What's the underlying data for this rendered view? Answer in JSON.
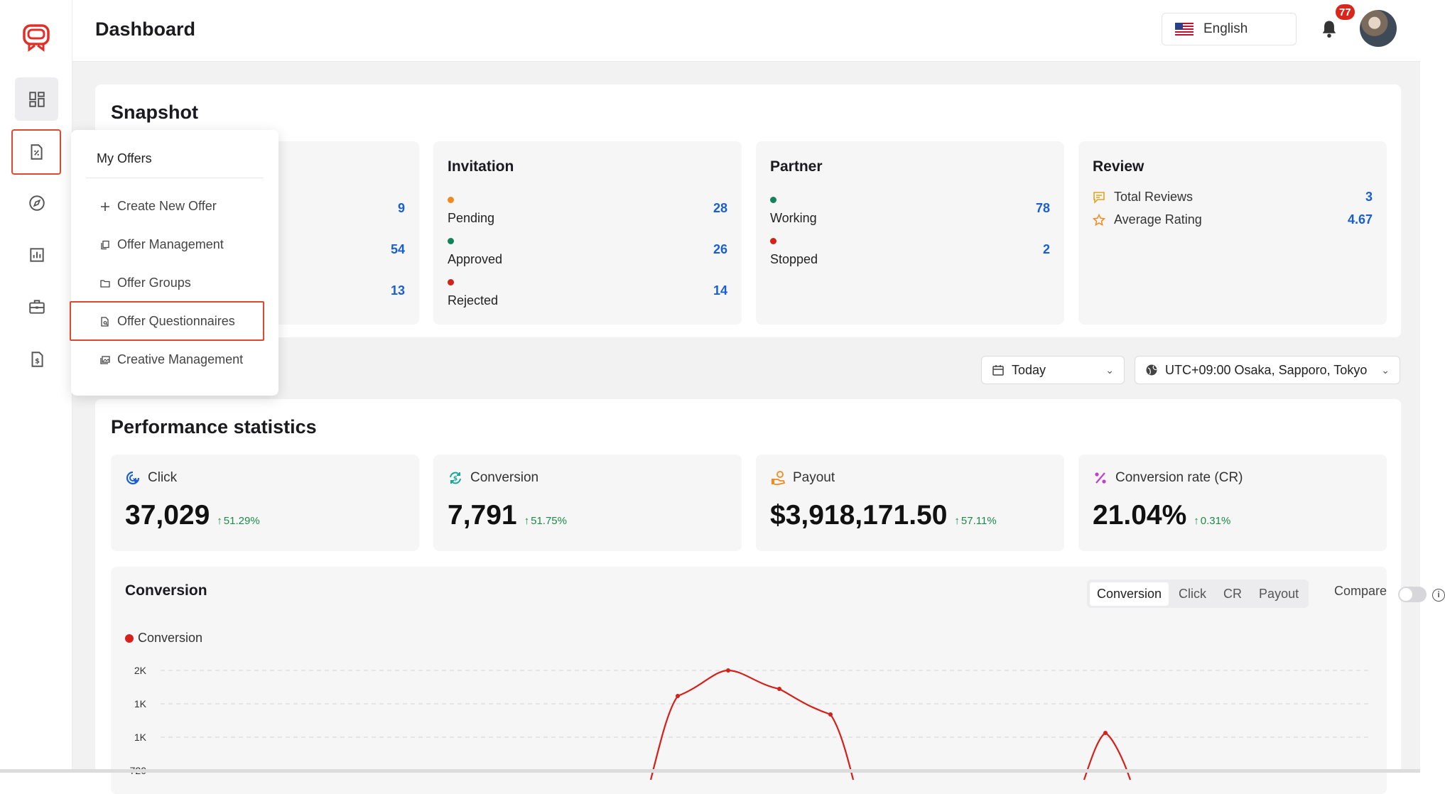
{
  "header": {
    "title": "Dashboard",
    "language": "English",
    "notification_count": "77"
  },
  "sidebar": {
    "items": [
      {
        "name": "dashboard",
        "icon": "grid-icon"
      },
      {
        "name": "offers",
        "icon": "offer-document-icon"
      },
      {
        "name": "explore",
        "icon": "compass-icon"
      },
      {
        "name": "reports",
        "icon": "bar-chart-icon"
      },
      {
        "name": "tools",
        "icon": "briefcase-icon"
      },
      {
        "name": "billing",
        "icon": "invoice-dollar-icon"
      }
    ]
  },
  "offers_menu": {
    "header": "My Offers",
    "items": [
      {
        "label": "Create New Offer",
        "icon": "plus-icon"
      },
      {
        "label": "Offer Management",
        "icon": "copy-icon"
      },
      {
        "label": "Offer Groups",
        "icon": "folder-icon"
      },
      {
        "label": "Offer Questionnaires",
        "icon": "file-search-icon"
      },
      {
        "label": "Creative Management",
        "icon": "gallery-icon"
      }
    ]
  },
  "snapshot": {
    "title": "Snapshot",
    "first_card_values": [
      "9",
      "54",
      "13"
    ],
    "invitation": {
      "title": "Invitation",
      "rows": [
        {
          "label": "Pending",
          "value": "28",
          "color": "#f08a1c"
        },
        {
          "label": "Approved",
          "value": "26",
          "color": "#12825a"
        },
        {
          "label": "Rejected",
          "value": "14",
          "color": "#d6201a"
        }
      ]
    },
    "partner": {
      "title": "Partner",
      "rows": [
        {
          "label": "Working",
          "value": "78",
          "color": "#12825a"
        },
        {
          "label": "Stopped",
          "value": "2",
          "color": "#d6201a"
        }
      ]
    },
    "review": {
      "title": "Review",
      "rows": [
        {
          "label": "Total Reviews",
          "value": "3",
          "icon": "message-icon"
        },
        {
          "label": "Average Rating",
          "value": "4.67",
          "icon": "star-icon"
        }
      ]
    }
  },
  "filters": {
    "date": "Today",
    "timezone": "UTC+09:00 Osaka, Sapporo, Tokyo"
  },
  "performance": {
    "title": "Performance statistics",
    "stats": [
      {
        "label": "Click",
        "value": "37,029",
        "change": "51.29%",
        "icon": "cursor-click-icon",
        "color": "#1a5fd0"
      },
      {
        "label": "Conversion",
        "value": "7,791",
        "change": "51.75%",
        "icon": "refresh-dollar-icon",
        "color": "#17a89a"
      },
      {
        "label": "Payout",
        "value": "$3,918,171.50",
        "change": "57.11%",
        "icon": "hand-coin-icon",
        "color": "#f08a1c"
      },
      {
        "label": "Conversion rate (CR)",
        "value": "21.04%",
        "change": "0.31%",
        "icon": "percent-icon",
        "color": "#c23fc9"
      }
    ]
  },
  "chart_panel": {
    "title": "Conversion",
    "tabs": [
      "Conversion",
      "Click",
      "CR",
      "Payout"
    ],
    "active_tab": "Conversion",
    "compare_label": "Compare",
    "legend": "Conversion",
    "y_ticks": [
      "2K",
      "1K",
      "1K",
      "720"
    ],
    "series_color": "#d6201a"
  }
}
